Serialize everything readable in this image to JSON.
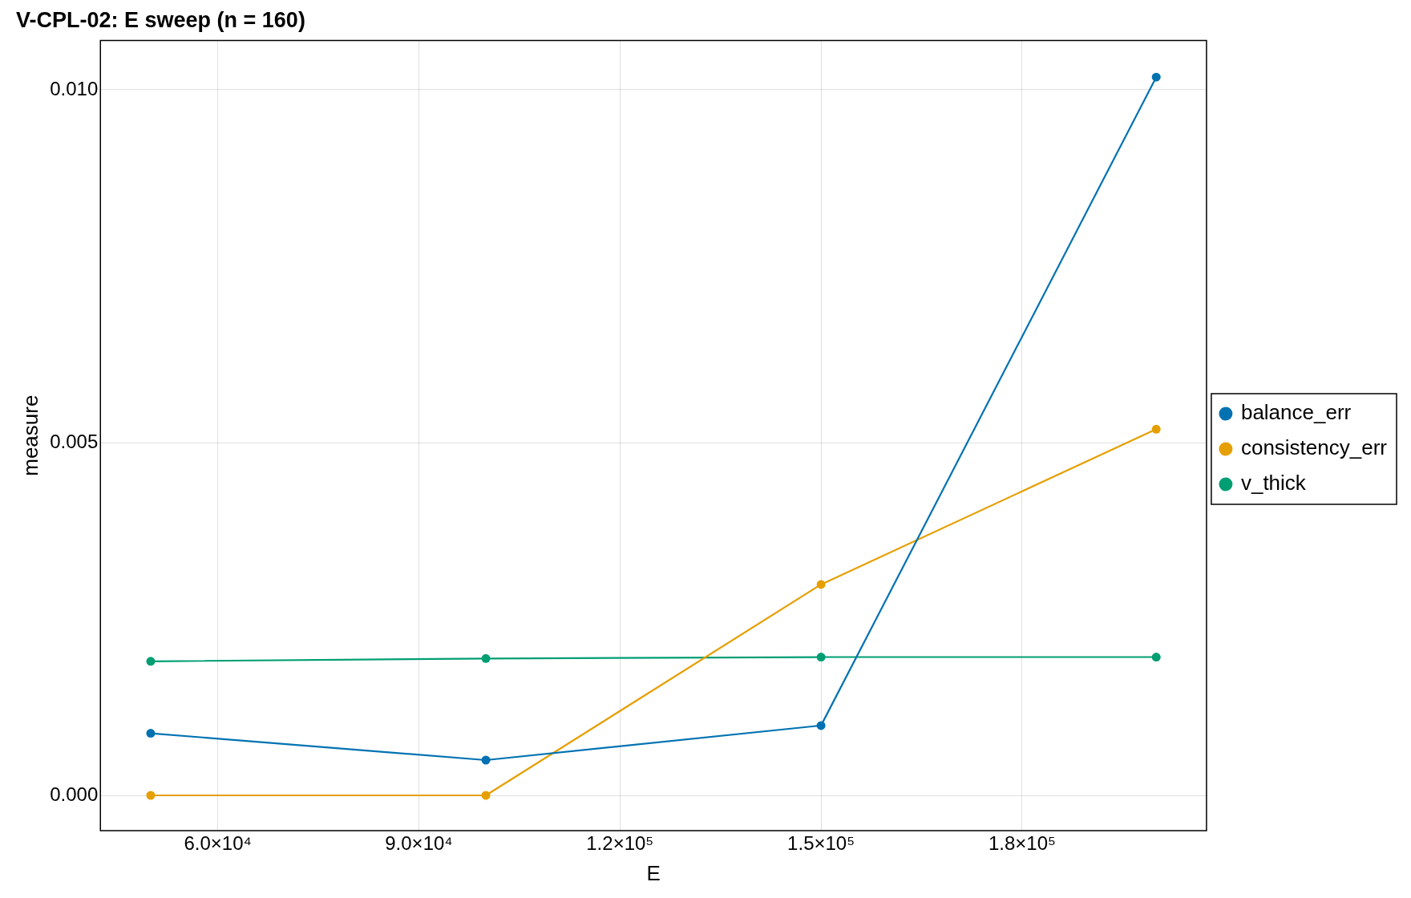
{
  "chart_data": {
    "type": "line",
    "title": "V-CPL-02: E sweep (n = 160)",
    "xlabel": "E",
    "ylabel": "measure",
    "x": [
      50000,
      100000,
      150000,
      200000
    ],
    "series": [
      {
        "name": "balance_err",
        "color": "#0072b2",
        "values": [
          0.00088,
          0.0005,
          0.00099,
          0.01018
        ]
      },
      {
        "name": "consistency_err",
        "color": "#e69f00",
        "values": [
          0.0,
          0.0,
          0.00299,
          0.00519
        ]
      },
      {
        "name": "v_thick",
        "color": "#009e73",
        "values": [
          0.0019,
          0.00194,
          0.00196,
          0.00196
        ]
      }
    ],
    "xlim": [
      42500,
      207500
    ],
    "xticks": [
      {
        "value": 60000,
        "label": "6.0×10⁴"
      },
      {
        "value": 90000,
        "label": "9.0×10⁴"
      },
      {
        "value": 120000,
        "label": "1.2×10⁵"
      },
      {
        "value": 150000,
        "label": "1.5×10⁵"
      },
      {
        "value": 180000,
        "label": "1.8×10⁵"
      }
    ],
    "ylim": [
      -0.0005,
      0.0107
    ],
    "yticks": [
      {
        "value": 0,
        "label": "0.000"
      },
      {
        "value": 0.005,
        "label": "0.005"
      },
      {
        "value": 0.01,
        "label": "0.010"
      }
    ],
    "grid": true,
    "legend": "right",
    "marker": "circle",
    "line_style": "solid"
  }
}
